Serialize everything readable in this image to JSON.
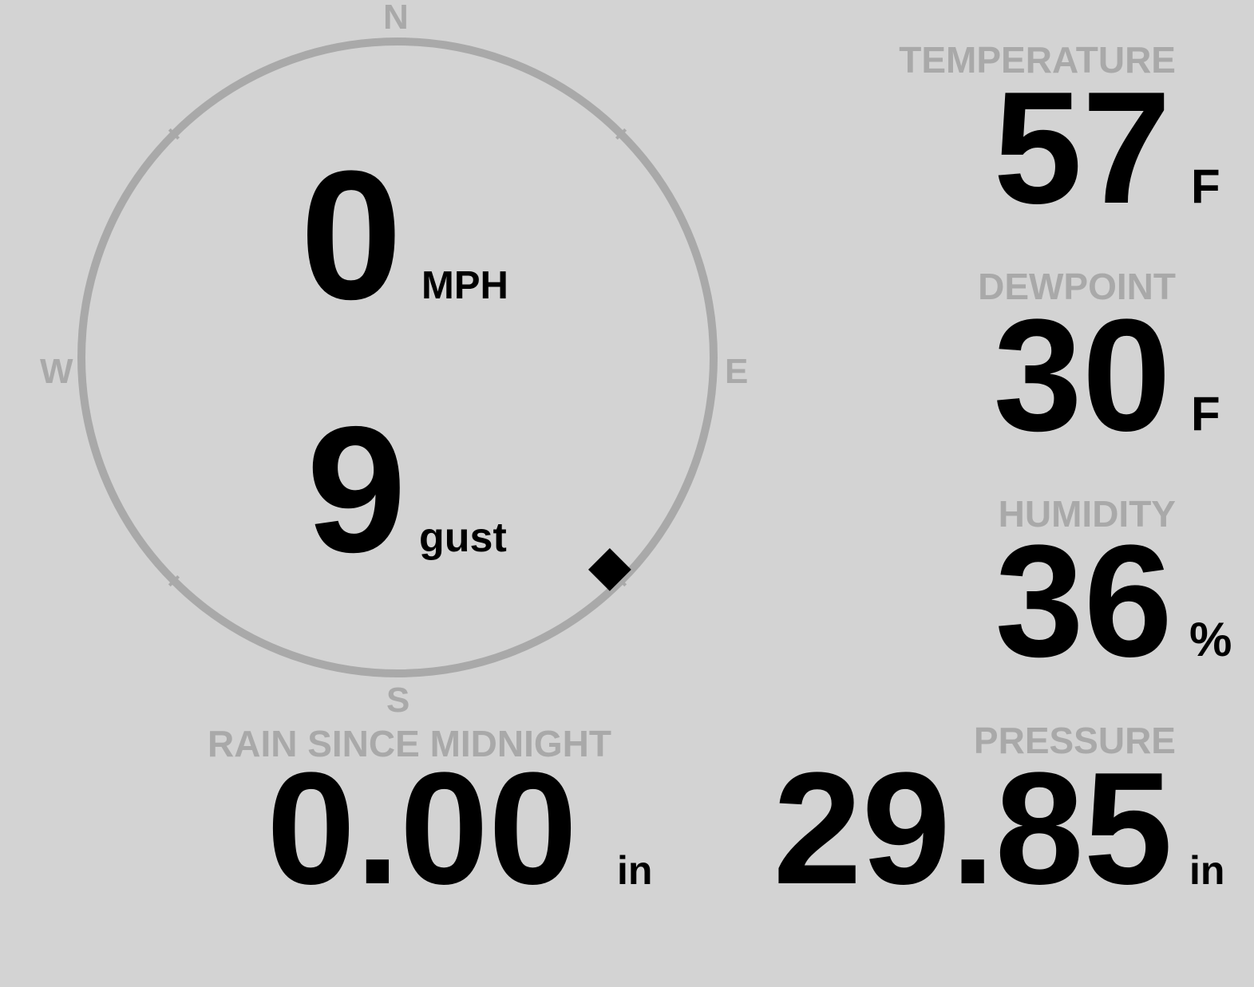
{
  "wind": {
    "speed": "0",
    "speed_unit": "MPH",
    "gust": "9",
    "gust_label": "gust",
    "direction_degrees": 135,
    "compass": {
      "n": "N",
      "e": "E",
      "s": "S",
      "w": "W"
    }
  },
  "temperature": {
    "label": "TEMPERATURE",
    "value": "57",
    "unit": "F"
  },
  "dewpoint": {
    "label": "DEWPOINT",
    "value": "30",
    "unit": "F"
  },
  "humidity": {
    "label": "HUMIDITY",
    "value": "36",
    "unit": "%"
  },
  "pressure": {
    "label": "PRESSURE",
    "value": "29.85",
    "unit": "in"
  },
  "rain": {
    "label": "RAIN SINCE MIDNIGHT",
    "value": "0.00",
    "unit": "in"
  },
  "colors": {
    "background": "#d3d3d3",
    "label": "#a9a9a9",
    "value": "#000000",
    "dial": "#a9a9a9"
  }
}
